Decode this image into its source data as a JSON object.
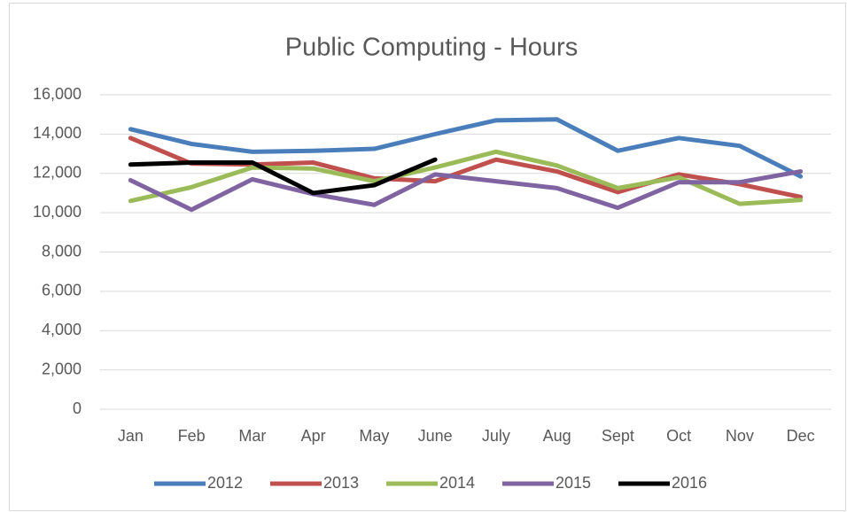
{
  "chart_data": {
    "type": "line",
    "title": "Public Computing - Hours",
    "categories": [
      "Jan",
      "Feb",
      "Mar",
      "Apr",
      "May",
      "June",
      "July",
      "Aug",
      "Sept",
      "Oct",
      "Nov",
      "Dec"
    ],
    "series": [
      {
        "name": "2012",
        "color": "#4a7ebb",
        "values": [
          14250,
          13500,
          13100,
          13150,
          13250,
          14000,
          14700,
          14750,
          13150,
          13800,
          13400,
          11850
        ]
      },
      {
        "name": "2013",
        "color": "#c0504d",
        "values": [
          13800,
          12500,
          12450,
          12550,
          11750,
          11600,
          12700,
          12100,
          11050,
          11950,
          11450,
          10800
        ]
      },
      {
        "name": "2014",
        "color": "#9bbb59",
        "values": [
          10600,
          11300,
          12300,
          12250,
          11600,
          12300,
          13100,
          12400,
          11250,
          11800,
          10450,
          10650
        ]
      },
      {
        "name": "2015",
        "color": "#8064a2",
        "values": [
          11650,
          10150,
          11700,
          10950,
          10400,
          11950,
          11600,
          11250,
          10250,
          11550,
          11550,
          12100
        ]
      },
      {
        "name": "2016",
        "color": "#000000",
        "values": [
          12450,
          12550,
          12550,
          11000,
          11400,
          12700,
          null,
          null,
          null,
          null,
          null,
          null
        ]
      }
    ],
    "ylim": [
      0,
      16000
    ],
    "yticks": [
      0,
      {
        "value": 2000,
        "label": "2,000"
      },
      {
        "value": 4000,
        "label": "4,000"
      },
      {
        "value": 6000,
        "label": "6,000"
      },
      {
        "value": 8000,
        "label": "8,000"
      },
      {
        "value": 10000,
        "label": "10,000"
      },
      {
        "value": 12000,
        "label": "12,000"
      },
      {
        "value": 14000,
        "label": "14,000"
      },
      {
        "value": 16000,
        "label": "16,000"
      }
    ],
    "grid": true,
    "legend": "bottom"
  }
}
